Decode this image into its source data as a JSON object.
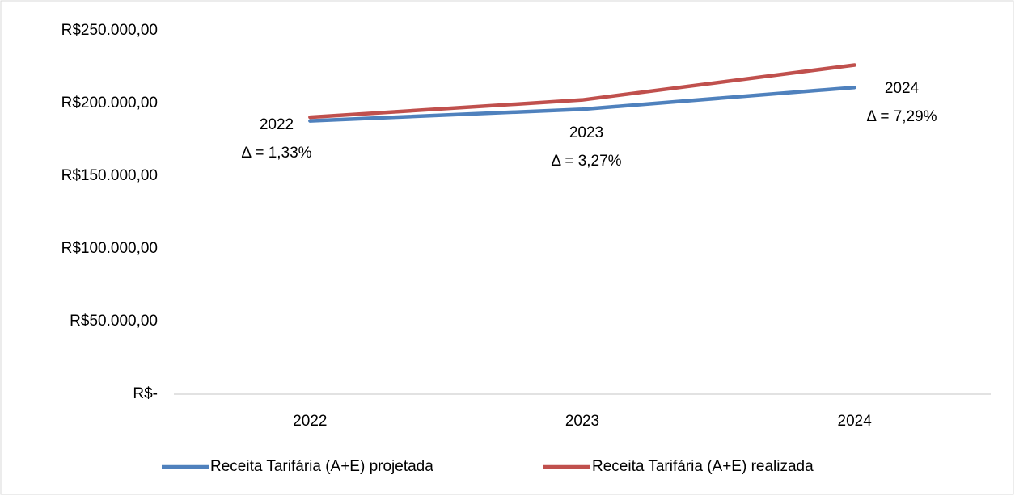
{
  "chart_data": {
    "type": "line",
    "categories": [
      "2022",
      "2023",
      "2024"
    ],
    "series": [
      {
        "name": "Receita Tarifária (A+E) projetada",
        "color": "#4f81bd",
        "values": [
          188000,
          196000,
          211000
        ]
      },
      {
        "name": "Receita Tarifária (A+E) realizada",
        "color": "#c0504d",
        "values": [
          190500,
          202400,
          226400
        ]
      }
    ],
    "ylim": [
      0,
      250000
    ],
    "yticks": [
      {
        "value": 0,
        "label": "R$-"
      },
      {
        "value": 50000,
        "label": "R$50.000,00"
      },
      {
        "value": 100000,
        "label": "R$100.000,00"
      },
      {
        "value": 150000,
        "label": "R$150.000,00"
      },
      {
        "value": 200000,
        "label": "R$200.000,00"
      },
      {
        "value": 250000,
        "label": "R$250.000,00"
      }
    ],
    "grid": false,
    "legend": "bottom",
    "annotations": [
      {
        "year": "2022",
        "text": "Δ = 1,33%"
      },
      {
        "year": "2023",
        "text": "Δ = 3,27%"
      },
      {
        "year": "2024",
        "text": "Δ = 7,29%"
      }
    ]
  }
}
